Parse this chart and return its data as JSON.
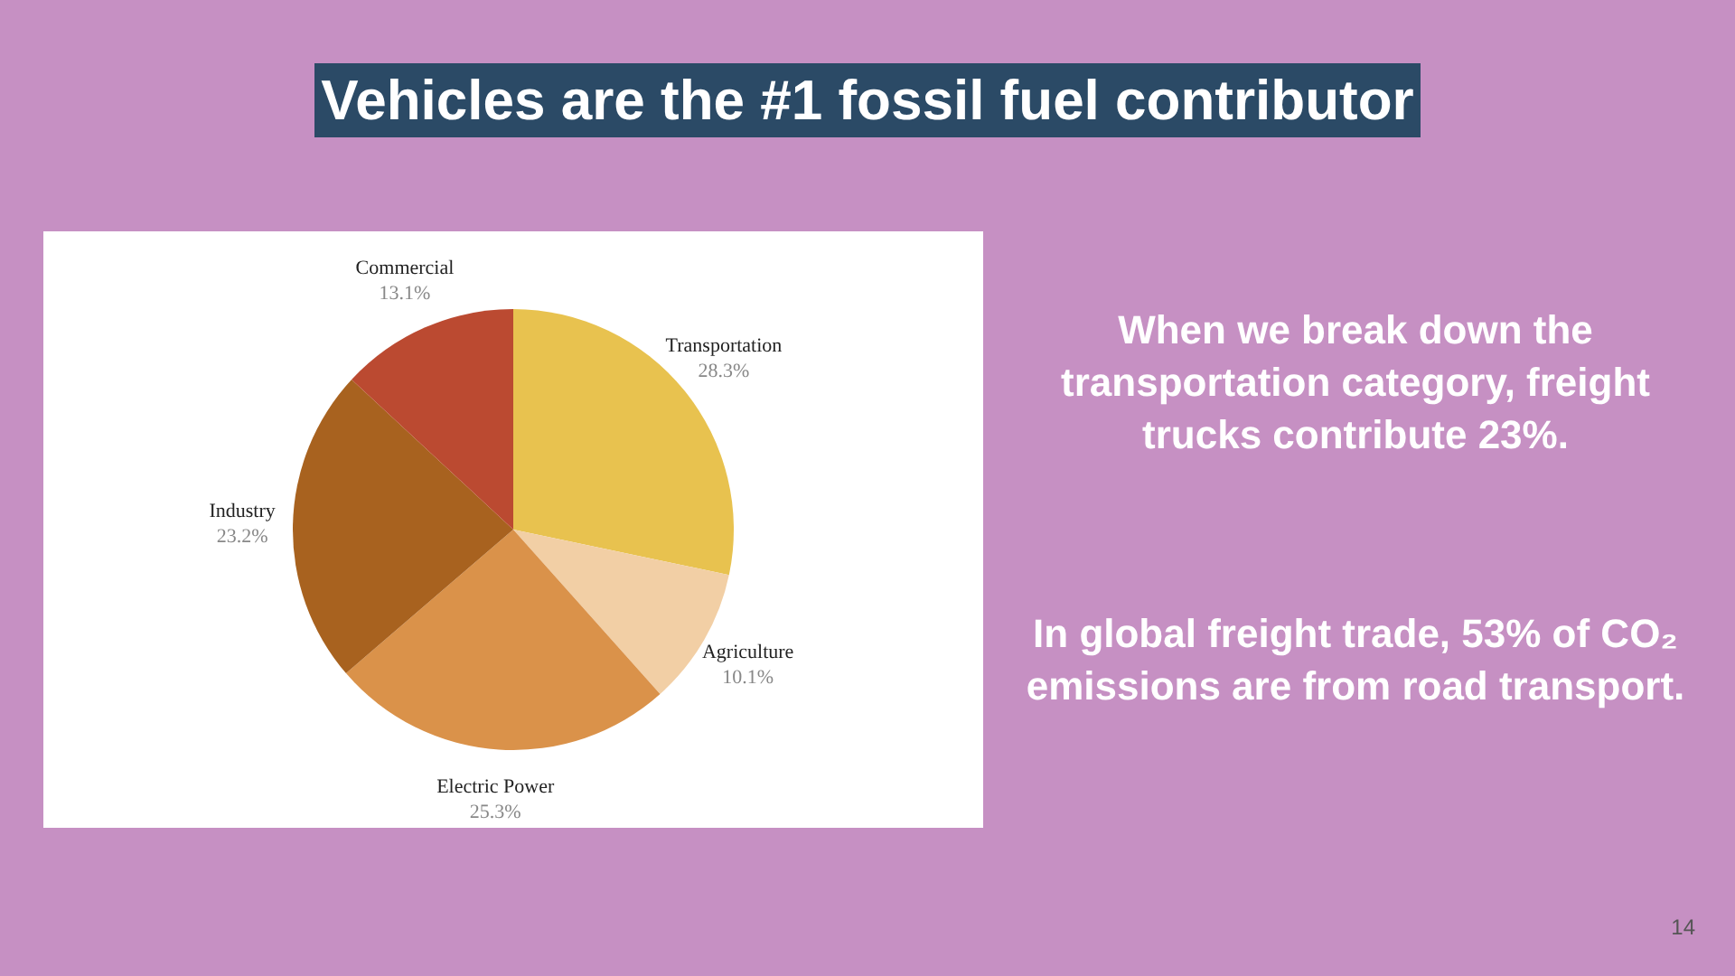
{
  "chart_data": {
    "type": "pie",
    "title": "Vehicles are the #1 fossil fuel contributor",
    "categories": [
      "Transportation",
      "Agriculture",
      "Electric Power",
      "Industry",
      "Commercial"
    ],
    "values": [
      28.3,
      10.1,
      25.3,
      23.2,
      13.1
    ],
    "value_labels": [
      "28.3%",
      "10.1%",
      "25.3%",
      "23.2%",
      "13.1%"
    ],
    "colors": [
      "#e8c24f",
      "#f2cfa5",
      "#da924a",
      "#a8621f",
      "#bb4a31"
    ],
    "annotations": [
      "When we break down the transportation category, freight trucks contribute 23%.",
      "In global freight trade, 53% of CO₂ emissions are from road transport.",
      "14"
    ]
  }
}
